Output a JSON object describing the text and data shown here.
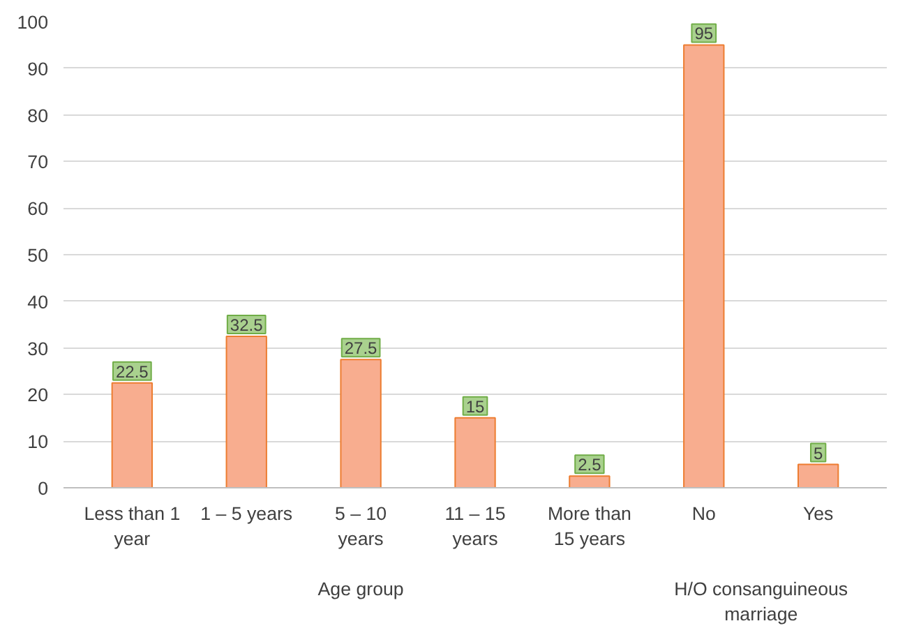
{
  "chart_data": {
    "type": "bar",
    "categories": [
      "Less than 1 year",
      "1 – 5 years",
      "5 – 10 years",
      "11 – 15 years",
      "More than 15 years",
      "No",
      "Yes"
    ],
    "values": [
      22.5,
      32.5,
      27.5,
      15,
      2.5,
      95,
      5
    ],
    "color": "#f8ad8f",
    "ylim": [
      0,
      100
    ],
    "yticks": [
      0,
      10,
      20,
      30,
      40,
      50,
      60,
      70,
      80,
      90,
      100
    ],
    "grid": "y",
    "data_labels": true,
    "annotations": [
      "Age group",
      "H/O consanguineous marriage"
    ]
  }
}
